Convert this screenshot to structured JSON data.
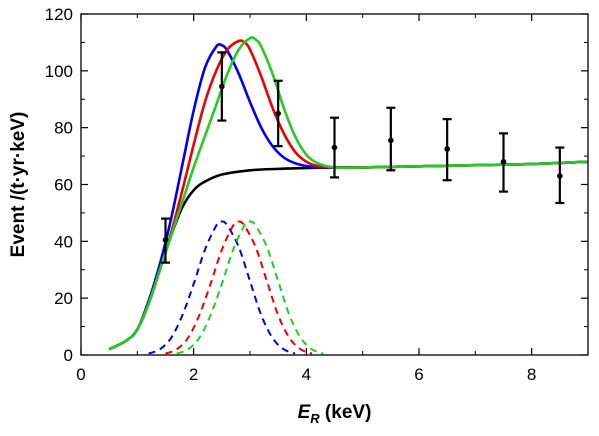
{
  "chart_data": {
    "type": "line",
    "xlabel": {
      "symbol": "E",
      "subscript": "R",
      "unit": " (keV)"
    },
    "ylabel": "Event /(t·yr·keV)",
    "xlim": [
      0,
      9
    ],
    "ylim": [
      0,
      120
    ],
    "xticks": [
      0,
      2,
      4,
      6,
      8
    ],
    "yticks": [
      0,
      20,
      40,
      60,
      80,
      100,
      120
    ],
    "grid": false,
    "legend": "none",
    "series": [
      {
        "style": "solid",
        "color": "#000000",
        "x": [
          0.5,
          0.8,
          1.0,
          1.2,
          1.4,
          1.6,
          1.8,
          2.0,
          2.2,
          2.5,
          3.0,
          3.5,
          4.0,
          4.5,
          5.0,
          6.0,
          7.0,
          8.0,
          9.0
        ],
        "y": [
          2,
          5,
          9,
          18,
          30,
          42,
          52,
          58,
          61,
          63.5,
          65,
          65.5,
          65.8,
          66,
          66,
          66.4,
          66.8,
          67.2,
          68
        ]
      },
      {
        "style": "solid",
        "color": "#0000ee",
        "x": [
          0.5,
          0.8,
          1.0,
          1.2,
          1.4,
          1.6,
          1.8,
          2.0,
          2.2,
          2.4,
          2.5,
          2.6,
          2.8,
          3.0,
          3.2,
          3.4,
          3.6,
          3.8,
          4.0,
          4.2,
          4.5,
          5.0,
          6.0,
          7.0,
          8.0,
          9.0
        ],
        "y": [
          2,
          5,
          9,
          19,
          32,
          48,
          67,
          86,
          101,
          108.5,
          109,
          107,
          99,
          89,
          80,
          73.5,
          69.5,
          67.5,
          66.5,
          66,
          66,
          66,
          66.4,
          66.8,
          67.2,
          68
        ]
      },
      {
        "style": "solid",
        "color": "#ee0000",
        "x": [
          0.5,
          0.8,
          1.0,
          1.2,
          1.4,
          1.6,
          1.8,
          2.0,
          2.2,
          2.4,
          2.6,
          2.8,
          2.9,
          3.0,
          3.2,
          3.4,
          3.6,
          3.8,
          4.0,
          4.2,
          4.5,
          5.0,
          6.0,
          7.0,
          8.0,
          9.0
        ],
        "y": [
          2,
          5,
          9,
          18,
          30,
          43,
          58,
          74,
          89,
          100,
          107.5,
          110.5,
          110,
          107.5,
          98,
          87,
          78,
          71.5,
          68,
          66.5,
          66,
          66,
          66.4,
          66.8,
          67.2,
          68
        ]
      },
      {
        "style": "solid",
        "color": "#22cc22",
        "x": [
          0.5,
          0.8,
          1.0,
          1.2,
          1.4,
          1.6,
          1.8,
          2.0,
          2.2,
          2.4,
          2.6,
          2.8,
          3.0,
          3.1,
          3.2,
          3.4,
          3.6,
          3.8,
          4.0,
          4.2,
          4.5,
          5.0,
          6.0,
          7.0,
          8.0,
          9.0
        ],
        "y": [
          2,
          5,
          9,
          18,
          30,
          42,
          54,
          66,
          77,
          88,
          99,
          107.5,
          111.5,
          111,
          108.5,
          99,
          87,
          77,
          70.5,
          67.5,
          66,
          66,
          66.4,
          66.8,
          67.2,
          68
        ]
      },
      {
        "style": "dashed",
        "color": "#0000ee",
        "x": [
          1.2,
          1.4,
          1.6,
          1.8,
          2.0,
          2.2,
          2.4,
          2.5,
          2.6,
          2.8,
          3.0,
          3.2,
          3.4,
          3.6,
          3.8
        ],
        "y": [
          0.5,
          2,
          6,
          14,
          25,
          37,
          45.5,
          47,
          45.5,
          38,
          26,
          14,
          6,
          2,
          0.5
        ]
      },
      {
        "style": "dashed",
        "color": "#ee0000",
        "x": [
          1.5,
          1.7,
          1.9,
          2.1,
          2.3,
          2.5,
          2.7,
          2.8,
          2.9,
          3.1,
          3.3,
          3.5,
          3.7,
          3.9,
          4.1
        ],
        "y": [
          0.5,
          2,
          6,
          14,
          25,
          37,
          45.5,
          47,
          45.5,
          38,
          26,
          14,
          6,
          2,
          0.5
        ]
      },
      {
        "style": "dashed",
        "color": "#22cc22",
        "x": [
          1.7,
          1.9,
          2.1,
          2.3,
          2.5,
          2.7,
          2.9,
          3.0,
          3.1,
          3.3,
          3.5,
          3.7,
          3.9,
          4.1,
          4.3
        ],
        "y": [
          0.5,
          2,
          6,
          14,
          25,
          37,
          45.5,
          47,
          45.5,
          38,
          26,
          14,
          6,
          2,
          0.5
        ]
      }
    ],
    "data_points": [
      {
        "x": 1.5,
        "y": 40.5,
        "ylow": 32.5,
        "yhigh": 48
      },
      {
        "x": 2.5,
        "y": 94.5,
        "ylow": 82.5,
        "yhigh": 106.5
      },
      {
        "x": 3.5,
        "y": 85,
        "ylow": 73.5,
        "yhigh": 96.5
      },
      {
        "x": 4.5,
        "y": 73,
        "ylow": 62.5,
        "yhigh": 83.5
      },
      {
        "x": 5.5,
        "y": 75.5,
        "ylow": 65,
        "yhigh": 87
      },
      {
        "x": 6.5,
        "y": 72.5,
        "ylow": 61.5,
        "yhigh": 83
      },
      {
        "x": 7.5,
        "y": 68,
        "ylow": 57.5,
        "yhigh": 78
      },
      {
        "x": 8.5,
        "y": 63,
        "ylow": 53.5,
        "yhigh": 73
      }
    ]
  }
}
